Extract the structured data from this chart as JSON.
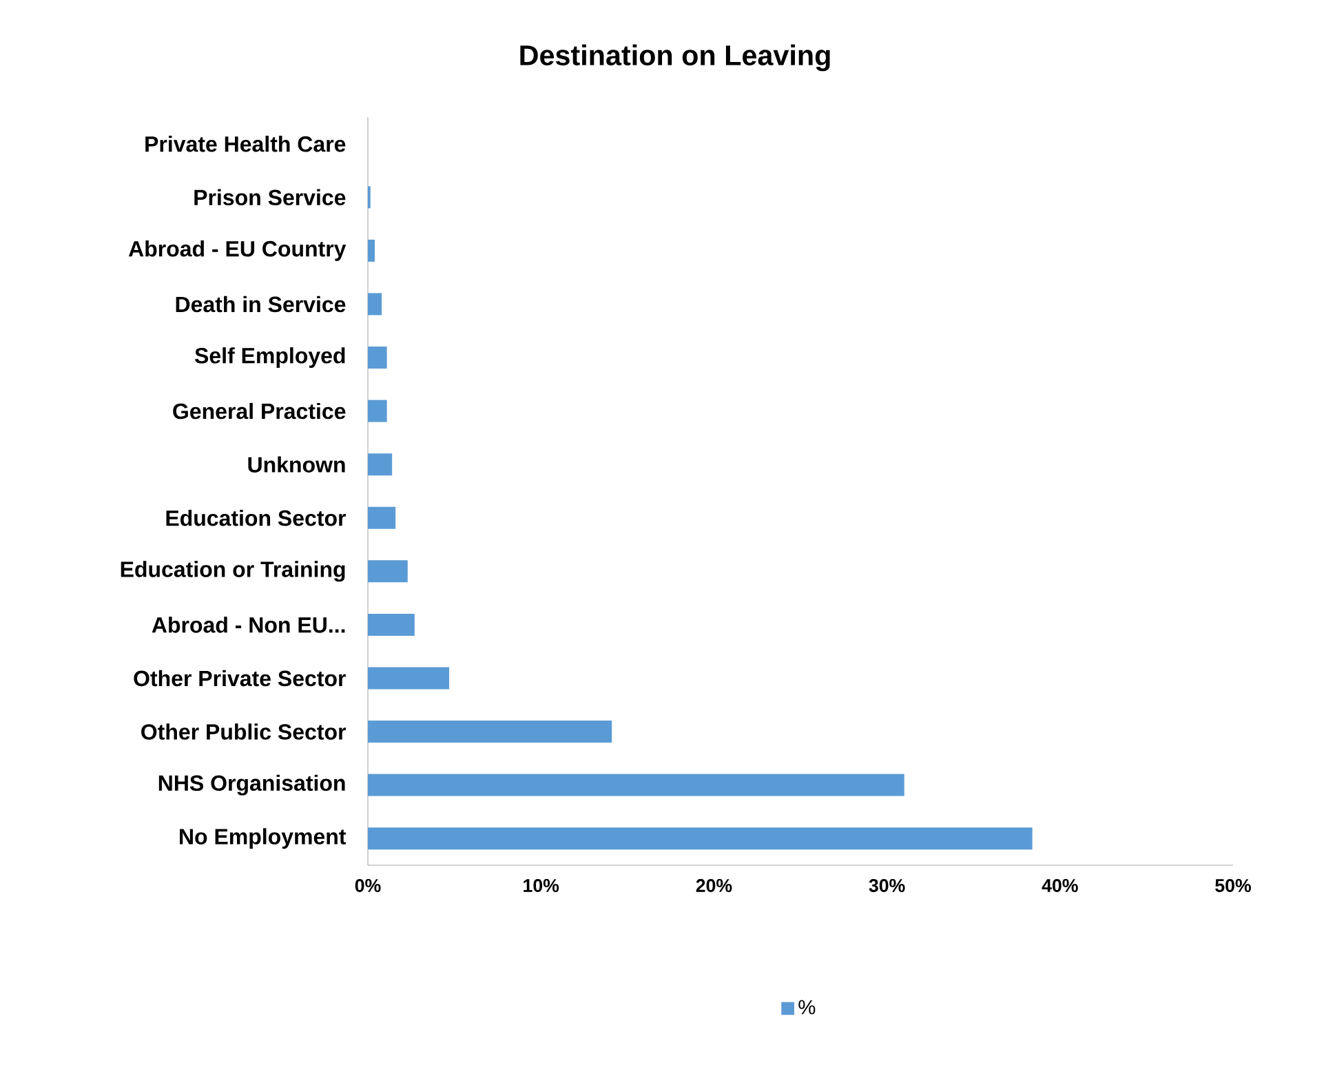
{
  "chart_data": {
    "type": "bar",
    "orientation": "horizontal",
    "title": "Destination on Leaving",
    "categories": [
      "Private Health Care",
      "Prison Service",
      "Abroad - EU Country",
      "Death in Service",
      "Self Employed",
      "General Practice",
      "Unknown",
      "Education Sector",
      "Education or Training",
      "Abroad - Non EU...",
      "Other Private Sector",
      "Other Public Sector",
      "NHS Organisation",
      "No Employment"
    ],
    "series": [
      {
        "name": "%",
        "color": "#5b9bd5",
        "values": [
          0,
          0.15,
          0.4,
          0.8,
          1.1,
          1.1,
          1.4,
          1.6,
          2.3,
          2.7,
          4.7,
          14.1,
          31.0,
          38.4
        ]
      }
    ],
    "xlim": [
      0,
      50
    ],
    "xticks": [
      {
        "value": 0,
        "label": "0%"
      },
      {
        "value": 10,
        "label": "10%"
      },
      {
        "value": 20,
        "label": "20%"
      },
      {
        "value": 30,
        "label": "30%"
      },
      {
        "value": 40,
        "label": "40%"
      },
      {
        "value": 50,
        "label": "50%"
      }
    ],
    "legend": "bottom",
    "grid": false
  }
}
